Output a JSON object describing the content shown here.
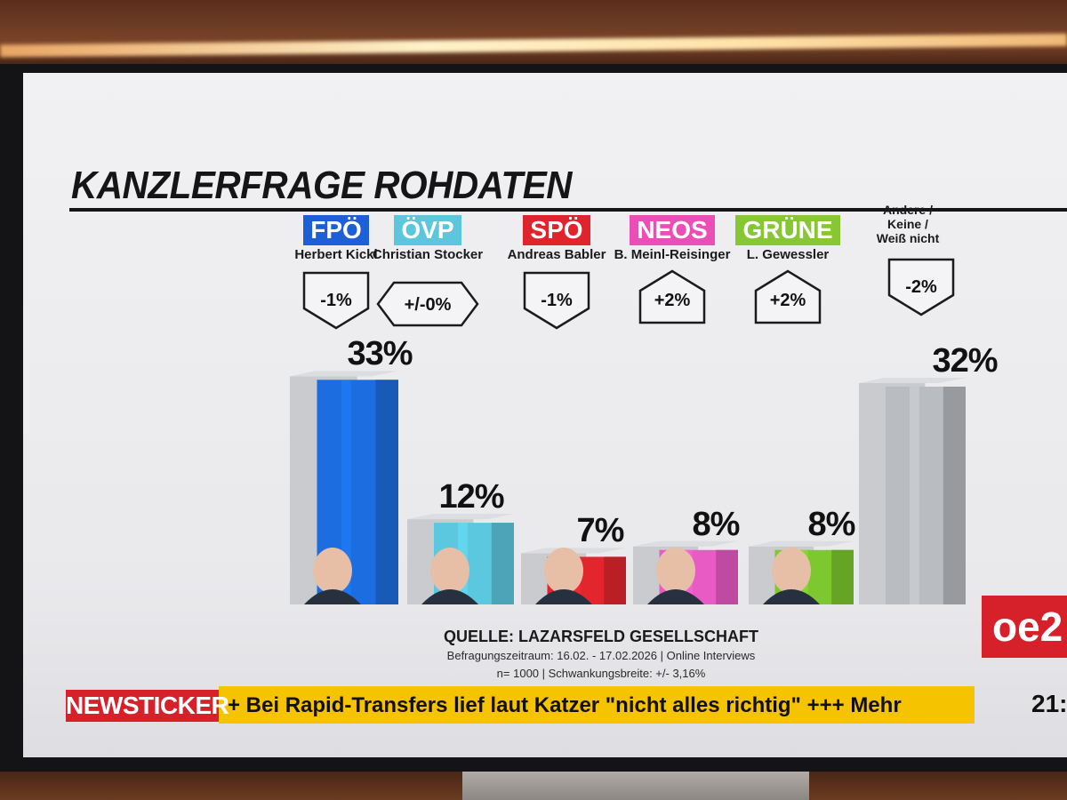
{
  "chart_data": {
    "type": "bar",
    "title": "KANZLERFRAGE ROHDATEN",
    "categories": [
      {
        "party": "FPÖ",
        "person": "Herbert Kickl",
        "value": 33,
        "label": "33%",
        "change": "-1%",
        "trend": "down",
        "color": "#1c6ee0",
        "badge_color": "#1c5fd6"
      },
      {
        "party": "ÖVP",
        "person": "Christian Stocker",
        "value": 12,
        "label": "12%",
        "change": "+/-0%",
        "trend": "flat",
        "color": "#5cc8df",
        "badge_color": "#5cc6dc"
      },
      {
        "party": "SPÖ",
        "person": "Andreas Babler",
        "value": 7,
        "label": "7%",
        "change": "-1%",
        "trend": "down",
        "color": "#e3262e",
        "badge_color": "#e0242c"
      },
      {
        "party": "NEOS",
        "person": "B. Meinl-Reisinger",
        "value": 8,
        "label": "8%",
        "change": "+2%",
        "trend": "up",
        "color": "#e85bc4",
        "badge_color": "#ea4fb8"
      },
      {
        "party": "GRÜNE",
        "person": "L. Gewessler",
        "value": 8,
        "label": "8%",
        "change": "+2%",
        "trend": "up",
        "color": "#7cc82e",
        "badge_color": "#86c733"
      },
      {
        "party": "",
        "person": "Andere / Keine / Weiß nicht",
        "value": 32,
        "label": "32%",
        "change": "-2%",
        "trend": "down",
        "color": "#b9bcc0",
        "badge_color": ""
      }
    ],
    "ylim": [
      0,
      35
    ]
  },
  "source": {
    "title": "QUELLE: LAZARSFELD GESELLSCHAFT",
    "line1": "Befragungszeitraum: 16.02. - 17.02.2026 | Online Interviews",
    "line2": "n= 1000 | Schwankungsbreite: +/- 3,16%"
  },
  "ticker": {
    "label": "NEWSTICKER",
    "text": "+ Bei Rapid-Transfers lief laut Katzer \"nicht alles richtig\"  +++ Mehr"
  },
  "logo": {
    "text": "oe2"
  },
  "clock": {
    "text": "21:"
  },
  "other_label": {
    "line1": "Andere /",
    "line2": "Keine /",
    "line3": "Weiß nicht"
  }
}
